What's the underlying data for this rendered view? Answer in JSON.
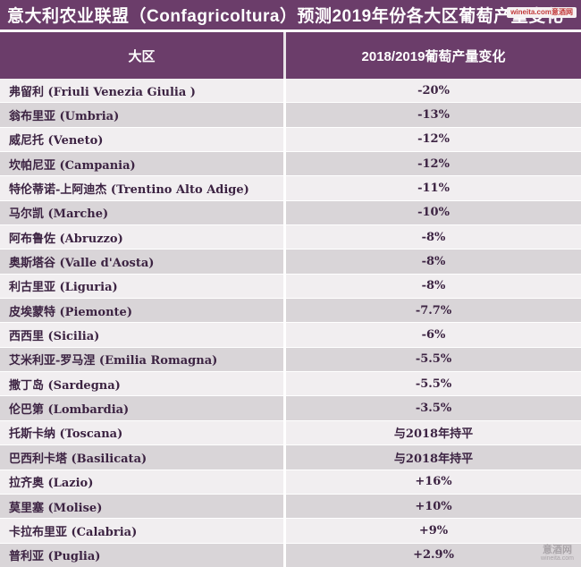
{
  "title": "意大利农业联盟（Confagricoltura）预测2019年份各大区葡萄产量变化",
  "watermark_top": "wineita.com意酒网",
  "watermark_bottom": {
    "line1": "意酒网",
    "line2": "wineita.com"
  },
  "colors": {
    "header_purple": "#6b3d6a",
    "row_light": "#f1eef0",
    "row_dark": "#d9d5d8",
    "cell_text": "#3c2342",
    "header_text": "#ffffff",
    "badge_text": "#c23a3a"
  },
  "table": {
    "columns": [
      "大区",
      "2018/2019葡萄产量变化"
    ],
    "rows": [
      {
        "region": "弗留利  (Friuli Venezia Giulia )",
        "change": "-20%"
      },
      {
        "region": "翁布里亚  (Umbria)",
        "change": "-13%"
      },
      {
        "region": "威尼托  (Veneto)",
        "change": "-12%"
      },
      {
        "region": "坎帕尼亚  (Campania)",
        "change": "-12%"
      },
      {
        "region": "特伦蒂诺-上阿迪杰  (Trentino Alto Adige)",
        "change": "-11%"
      },
      {
        "region": "马尔凯  (Marche)",
        "change": "-10%"
      },
      {
        "region": "阿布鲁佐  (Abruzzo)",
        "change": "-8%"
      },
      {
        "region": "奥斯塔谷  (Valle d'Aosta)",
        "change": "-8%"
      },
      {
        "region": "利古里亚  (Liguria)",
        "change": "-8%"
      },
      {
        "region": "皮埃蒙特  (Piemonte)",
        "change": "-7.7%"
      },
      {
        "region": "西西里  (Sicilia)",
        "change": "-6%"
      },
      {
        "region": "艾米利亚-罗马涅  (Emilia Romagna)",
        "change": "-5.5%"
      },
      {
        "region": "撒丁岛  (Sardegna)",
        "change": "-5.5%"
      },
      {
        "region": "伦巴第  (Lombardia)",
        "change": "-3.5%"
      },
      {
        "region": "托斯卡纳  (Toscana)",
        "change": "与2018年持平"
      },
      {
        "region": "巴西利卡塔  (Basilicata)",
        "change": "与2018年持平"
      },
      {
        "region": "拉齐奥  (Lazio)",
        "change": "+16%"
      },
      {
        "region": "莫里塞  (Molise)",
        "change": "+10%"
      },
      {
        "region": "卡拉布里亚  (Calabria)",
        "change": "+9%"
      },
      {
        "region": "普利亚  (Puglia)",
        "change": "+2.9%"
      }
    ]
  },
  "chart_data": {
    "type": "table",
    "title": "意大利农业联盟（Confagricoltura）预测2019年份各大区葡萄产量变化",
    "columns": [
      "大区",
      "2018/2019葡萄产量变化"
    ],
    "categories": [
      "Friuli Venezia Giulia",
      "Umbria",
      "Veneto",
      "Campania",
      "Trentino Alto Adige",
      "Marche",
      "Abruzzo",
      "Valle d'Aosta",
      "Liguria",
      "Piemonte",
      "Sicilia",
      "Emilia Romagna",
      "Sardegna",
      "Lombardia",
      "Toscana",
      "Basilicata",
      "Lazio",
      "Molise",
      "Calabria",
      "Puglia"
    ],
    "values_percent": [
      -20,
      -13,
      -12,
      -12,
      -11,
      -10,
      -8,
      -8,
      -8,
      -7.7,
      -6,
      -5.5,
      -5.5,
      -3.5,
      0,
      0,
      16,
      10,
      9,
      2.9
    ],
    "value_labels": [
      "-20%",
      "-13%",
      "-12%",
      "-12%",
      "-11%",
      "-10%",
      "-8%",
      "-8%",
      "-8%",
      "-7.7%",
      "-6%",
      "-5.5%",
      "-5.5%",
      "-3.5%",
      "与2018年持平",
      "与2018年持平",
      "+16%",
      "+10%",
      "+9%",
      "+2.9%"
    ]
  }
}
